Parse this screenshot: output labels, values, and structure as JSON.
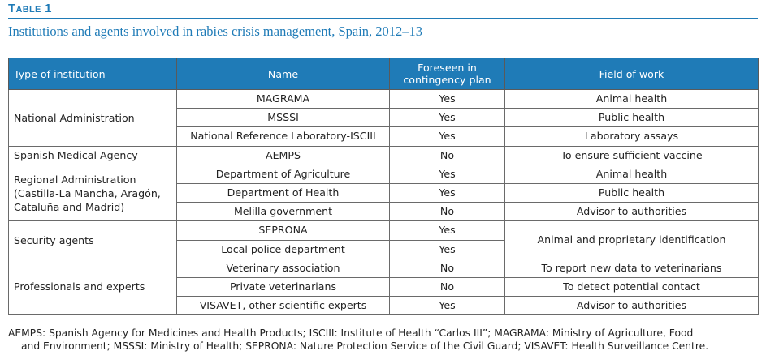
{
  "table_label": "Table 1",
  "caption": "Institutions and agents involved in rabies crisis management, Spain, 2012–13",
  "headers": {
    "type": "Type of institution",
    "name": "Name",
    "foreseen_line1": "Foreseen in",
    "foreseen_line2": "contingency plan",
    "field": "Field of work"
  },
  "groups": [
    {
      "type": "National Administration",
      "rows": [
        {
          "name": "MAGRAMA",
          "foreseen": "Yes",
          "field": "Animal health"
        },
        {
          "name": "MSSSI",
          "foreseen": "Yes",
          "field": "Public health"
        },
        {
          "name": "National Reference Laboratory-ISCIII",
          "foreseen": "Yes",
          "field": "Laboratory assays"
        }
      ]
    },
    {
      "type": "Spanish Medical Agency",
      "rows": [
        {
          "name": "AEMPS",
          "foreseen": "No",
          "field": "To ensure sufficient vaccine"
        }
      ]
    },
    {
      "type_lines": [
        "Regional Administration",
        "(Castilla-La Mancha, Aragón,",
        "Cataluña and Madrid)"
      ],
      "rows": [
        {
          "name": "Department of Agriculture",
          "foreseen": "Yes",
          "field": "Animal health"
        },
        {
          "name": "Department of Health",
          "foreseen": "Yes",
          "field": "Public health"
        },
        {
          "name": "Melilla government",
          "foreseen": "No",
          "field": "Advisor to authorities"
        }
      ]
    },
    {
      "type": "Security agents",
      "merged_field": "Animal and proprietary identification",
      "rows": [
        {
          "name": "SEPRONA",
          "foreseen": "Yes"
        },
        {
          "name": "Local police department",
          "foreseen": "Yes"
        }
      ]
    },
    {
      "type": "Professionals and experts",
      "rows": [
        {
          "name": "Veterinary association",
          "foreseen": "No",
          "field": "To report new data to veterinarians"
        },
        {
          "name": "Private veterinarians",
          "foreseen": "No",
          "field": "To detect potential contact"
        },
        {
          "name": "VISAVET, other scientific experts",
          "foreseen": "Yes",
          "field": "Advisor to authorities"
        }
      ]
    }
  ],
  "footnote": {
    "line1": "AEMPS: Spanish Agency for Medicines and Health Products; ISCIII: Institute of Health “Carlos III”; MAGRAMA: Ministry of Agriculture, Food",
    "line2": "and Environment; MSSSI: Ministry of Health; SEPRONA: Nature Protection Service of the Civil Guard; VISAVET: Health Surveillance Centre."
  }
}
